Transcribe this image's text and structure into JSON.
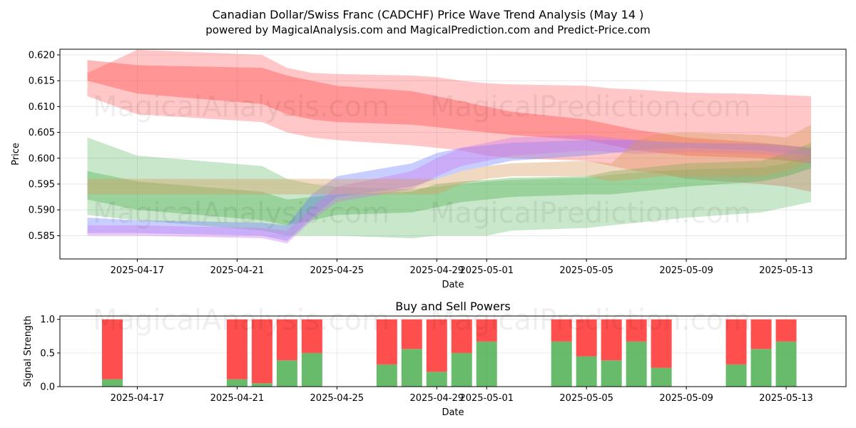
{
  "title": "Canadian Dollar/Swiss Franc (CADCHF) Price Wave Trend Analysis (May 14 )",
  "subtitle": "powered by MagicalAnalysis.com and MagicalPrediction.com and Predict-Price.com",
  "watermark_left": "MagicalAnalysis.com",
  "watermark_right": "MagicalPrediction.com",
  "colors": {
    "red": "#ff4444",
    "green": "#4caf50",
    "blue": "#6f7fff",
    "purple": "#cc77ee",
    "orange": "#d89a5a"
  },
  "chart_data": [
    {
      "type": "area",
      "xlabel": "Date",
      "ylabel": "Price",
      "ylim": [
        0.5805,
        0.6211
      ],
      "yticks": [
        "0.585",
        "0.590",
        "0.595",
        "0.600",
        "0.605",
        "0.610",
        "0.615",
        "0.620"
      ],
      "xtick_labels": [
        "2025-04-17",
        "2025-04-21",
        "2025-04-25",
        "2025-04-29",
        "2025-05-01",
        "2025-05-05",
        "2025-05-09",
        "2025-05-13"
      ],
      "grid": true,
      "dates": [
        "2025-04-15",
        "2025-04-17",
        "2025-04-22",
        "2025-04-23",
        "2025-04-24",
        "2025-04-25",
        "2025-04-28",
        "2025-04-29",
        "2025-04-30",
        "2025-05-01",
        "2025-05-02",
        "2025-05-05",
        "2025-05-06",
        "2025-05-07",
        "2025-05-08",
        "2025-05-09",
        "2025-05-12",
        "2025-05-13",
        "2025-05-14"
      ],
      "series": [
        {
          "color": "red",
          "band": "upper",
          "low": [
            0.612,
            0.6085,
            0.607,
            0.605,
            0.604,
            0.6035,
            0.6025,
            0.602,
            0.6015,
            0.6005,
            0.6,
            0.5995,
            0.5985,
            0.5975,
            0.597,
            0.596,
            0.595,
            0.5945,
            0.5935
          ],
          "high": [
            0.6165,
            0.621,
            0.62,
            0.6175,
            0.6165,
            0.6163,
            0.616,
            0.6157,
            0.615,
            0.6145,
            0.6143,
            0.614,
            0.6135,
            0.6133,
            0.613,
            0.6127,
            0.6124,
            0.6122,
            0.612
          ]
        },
        {
          "color": "red",
          "band": "core",
          "low": [
            0.615,
            0.6125,
            0.6105,
            0.6085,
            0.6075,
            0.607,
            0.6065,
            0.606,
            0.6055,
            0.605,
            0.6045,
            0.6035,
            0.6025,
            0.6015,
            0.601,
            0.6005,
            0.6,
            0.5995,
            0.599
          ],
          "high": [
            0.619,
            0.618,
            0.6175,
            0.616,
            0.615,
            0.614,
            0.613,
            0.612,
            0.611,
            0.61,
            0.609,
            0.6075,
            0.6065,
            0.6055,
            0.6048,
            0.604,
            0.603,
            0.6025,
            0.602
          ]
        },
        {
          "color": "green",
          "band": "wide",
          "low": [
            0.589,
            0.588,
            0.586,
            0.585,
            0.585,
            0.585,
            0.5845,
            0.585,
            0.585,
            0.585,
            0.586,
            0.5865,
            0.587,
            0.5875,
            0.588,
            0.5885,
            0.5895,
            0.5905,
            0.5915
          ],
          "high": [
            0.604,
            0.6005,
            0.5985,
            0.596,
            0.595,
            0.5945,
            0.594,
            0.5945,
            0.595,
            0.5955,
            0.5958,
            0.5962,
            0.5968,
            0.5972,
            0.5975,
            0.5978,
            0.5982,
            0.599,
            0.601
          ]
        },
        {
          "color": "green",
          "band": "core",
          "low": [
            0.592,
            0.59,
            0.588,
            0.587,
            0.588,
            0.589,
            0.5895,
            0.5905,
            0.5915,
            0.592,
            0.5925,
            0.593,
            0.593,
            0.5935,
            0.594,
            0.5945,
            0.5955,
            0.5965,
            0.598
          ],
          "high": [
            0.5975,
            0.5955,
            0.5935,
            0.592,
            0.5925,
            0.593,
            0.5935,
            0.595,
            0.5955,
            0.5958,
            0.5962,
            0.5965,
            0.5975,
            0.598,
            0.5985,
            0.599,
            0.5995,
            0.601,
            0.603
          ]
        },
        {
          "color": "blue",
          "band": "core",
          "low": [
            0.5855,
            0.5855,
            0.585,
            0.584,
            0.5885,
            0.5925,
            0.5945,
            0.596,
            0.5975,
            0.5985,
            0.5995,
            0.6005,
            0.601,
            0.6015,
            0.6018,
            0.602,
            0.6015,
            0.601,
            0.6005
          ],
          "high": [
            0.5885,
            0.588,
            0.5875,
            0.587,
            0.593,
            0.5965,
            0.599,
            0.601,
            0.602,
            0.6025,
            0.603,
            0.6035,
            0.6035,
            0.6035,
            0.6032,
            0.603,
            0.6028,
            0.6025,
            0.602
          ]
        },
        {
          "color": "purple",
          "band": "core",
          "low": [
            0.585,
            0.585,
            0.5845,
            0.5835,
            0.588,
            0.5915,
            0.594,
            0.5965,
            0.5985,
            0.5995,
            0.6005,
            0.6015,
            0.6012,
            0.6008,
            0.601,
            0.6012,
            0.6008,
            0.6,
            0.599
          ],
          "high": [
            0.587,
            0.587,
            0.5865,
            0.586,
            0.5905,
            0.5945,
            0.5975,
            0.6,
            0.602,
            0.603,
            0.604,
            0.6045,
            0.604,
            0.6035,
            0.6032,
            0.603,
            0.6025,
            0.602,
            0.601
          ]
        },
        {
          "color": "orange",
          "band": "core",
          "low": [
            0.593,
            0.593,
            0.593,
            0.593,
            0.593,
            0.593,
            0.593,
            0.593,
            0.595,
            0.596,
            0.5965,
            0.5965,
            0.5955,
            0.596,
            0.5965,
            0.5965,
            0.5965,
            0.5975,
            0.5995
          ],
          "high": [
            0.596,
            0.596,
            0.596,
            0.596,
            0.596,
            0.596,
            0.596,
            0.596,
            0.5975,
            0.5985,
            0.599,
            0.5995,
            0.599,
            0.6035,
            0.6048,
            0.605,
            0.6045,
            0.604,
            0.6065
          ]
        }
      ]
    },
    {
      "type": "bar",
      "title": "Buy and Sell Powers",
      "xlabel": "Date",
      "ylabel": "Signal Strength",
      "ylim": [
        0,
        1.05
      ],
      "yticks": [
        "0.0",
        "0.5",
        "1.0"
      ],
      "xtick_labels": [
        "2025-04-17",
        "2025-04-21",
        "2025-04-25",
        "2025-04-29",
        "2025-05-01",
        "2025-05-05",
        "2025-05-09",
        "2025-05-13"
      ],
      "grid": true,
      "categories": [
        "2025-04-16",
        "2025-04-21",
        "2025-04-22",
        "2025-04-23",
        "2025-04-24",
        "2025-04-27",
        "2025-04-28",
        "2025-04-29",
        "2025-04-30",
        "2025-05-01",
        "2025-05-04",
        "2025-05-05",
        "2025-05-06",
        "2025-05-07",
        "2025-05-08",
        "2025-05-11",
        "2025-05-12",
        "2025-05-13"
      ],
      "series": [
        {
          "color": "green",
          "values": [
            0.11,
            0.11,
            0.05,
            0.39,
            0.5,
            0.33,
            0.56,
            0.22,
            0.5,
            0.67,
            0.67,
            0.45,
            0.39,
            0.67,
            0.28,
            0.33,
            0.56,
            0.67
          ]
        },
        {
          "color": "red",
          "values": [
            0.89,
            0.89,
            0.95,
            0.61,
            0.5,
            0.67,
            0.44,
            0.78,
            0.5,
            0.33,
            0.33,
            0.55,
            0.61,
            0.33,
            0.72,
            0.67,
            0.44,
            0.33
          ]
        }
      ]
    }
  ]
}
